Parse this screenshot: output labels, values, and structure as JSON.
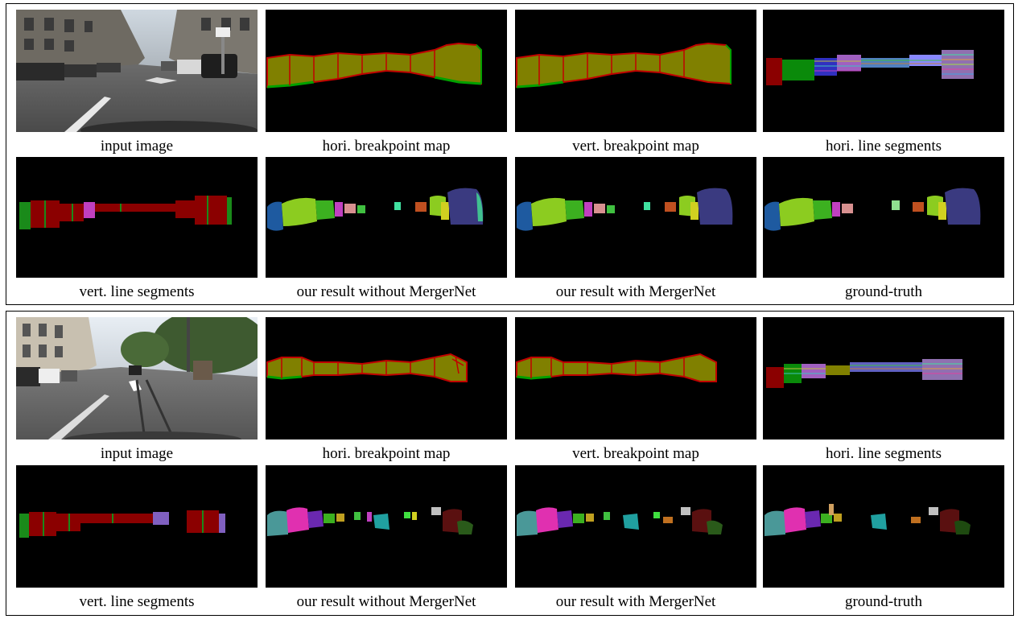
{
  "blocks": [
    {
      "rows": [
        [
          "input image",
          "hori. breakpoint map",
          "vert. breakpoint map",
          "hori. line segments"
        ],
        [
          "vert. line segments",
          "our result without MergerNet",
          "our result with MergerNet",
          "ground-truth"
        ]
      ]
    },
    {
      "rows": [
        [
          "input image",
          "hori. breakpoint map",
          "vert. breakpoint map",
          "hori. line segments"
        ],
        [
          "vert. line segments",
          "our result without MergerNet",
          "our result with MergerNet",
          "ground-truth"
        ]
      ]
    }
  ],
  "colors": {
    "breakpoint_fill": "#808000",
    "breakpoint_edge_red": "#c00000",
    "breakpoint_edge_green": "#00a000",
    "line_segment_red": "#8b0000",
    "line_segment_green": "#1a8a1a"
  }
}
